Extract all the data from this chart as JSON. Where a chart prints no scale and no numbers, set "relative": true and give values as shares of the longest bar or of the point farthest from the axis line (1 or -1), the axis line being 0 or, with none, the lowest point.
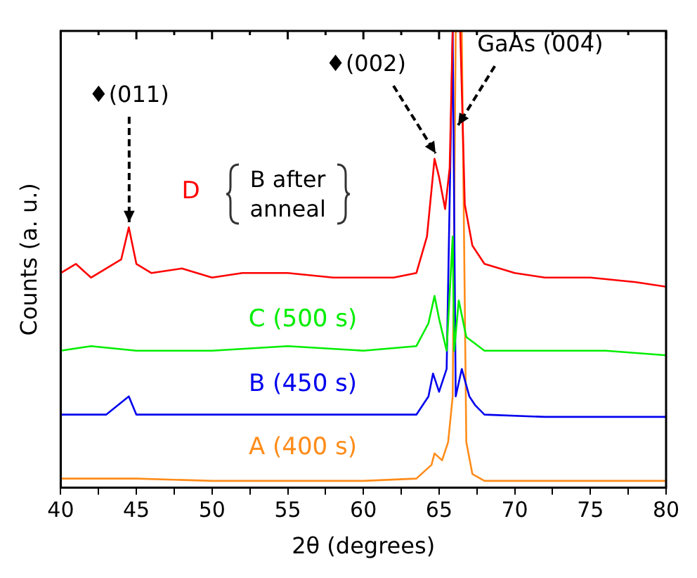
{
  "chart_data": {
    "type": "line",
    "relative": true,
    "xlabel": "2θ (degrees)",
    "ylabel": "Counts (a. u.)",
    "xlim": [
      40,
      80
    ],
    "xticks": [
      40,
      {
        "value": 42.5,
        "label": null
      },
      45,
      {
        "value": 47.5,
        "label": null
      },
      50,
      {
        "value": 52.5,
        "label": null
      },
      55,
      {
        "value": 57.5,
        "label": null
      },
      60,
      {
        "value": 62.5,
        "label": null
      },
      65,
      {
        "value": 67.5,
        "label": null
      },
      70,
      {
        "value": 72.5,
        "label": null
      },
      75,
      {
        "value": 77.5,
        "label": null
      },
      80
    ],
    "grid": false,
    "legend": false,
    "marker": "none",
    "line_style": "solid",
    "series": [
      {
        "name": "D",
        "color": "#ff0000",
        "x": [
          40,
          41,
          42,
          43,
          44,
          44.5,
          45,
          46,
          48,
          50,
          52,
          55,
          58,
          60,
          62,
          63.5,
          64.2,
          64.7,
          65.0,
          65.4,
          65.7,
          65.9,
          66.4,
          66.7,
          67.2,
          68,
          70,
          72,
          75,
          78,
          80
        ],
        "values": [
          0.47,
          0.49,
          0.46,
          0.48,
          0.5,
          0.57,
          0.49,
          0.47,
          0.48,
          0.46,
          0.47,
          0.47,
          0.46,
          0.46,
          0.46,
          0.47,
          0.55,
          0.72,
          0.68,
          0.61,
          0.7,
          1.0,
          1.0,
          0.62,
          0.53,
          0.49,
          0.47,
          0.46,
          0.46,
          0.45,
          0.44
        ]
      },
      {
        "name": "C (500 s)",
        "color": "#00ee00",
        "x": [
          40,
          42,
          45,
          50,
          55,
          60,
          63.5,
          64.3,
          64.7,
          65.0,
          65.5,
          65.9,
          66.0,
          66.3,
          66.8,
          68,
          72,
          76,
          80
        ],
        "values": [
          0.3,
          0.31,
          0.3,
          0.3,
          0.31,
          0.3,
          0.31,
          0.36,
          0.42,
          0.37,
          0.3,
          0.55,
          0.3,
          0.41,
          0.33,
          0.3,
          0.3,
          0.3,
          0.29
        ]
      },
      {
        "name": "B (450 s)",
        "color": "#0000ee",
        "x": [
          40,
          43,
          44.5,
          45,
          50,
          55,
          60,
          63.5,
          64.3,
          64.6,
          65.0,
          65.5,
          65.9,
          66.1,
          66.5,
          67.0,
          67.4,
          68,
          72,
          76,
          80
        ],
        "values": [
          0.16,
          0.16,
          0.2,
          0.16,
          0.16,
          0.16,
          0.16,
          0.16,
          0.2,
          0.25,
          0.21,
          0.26,
          1.0,
          0.2,
          0.26,
          0.2,
          0.18,
          0.16,
          0.155,
          0.155,
          0.155
        ]
      },
      {
        "name": "A (400 s)",
        "color": "#ff8c1a",
        "x": [
          40,
          45,
          50,
          55,
          60,
          63.5,
          64.5,
          64.7,
          65.2,
          65.6,
          65.9,
          66.1,
          66.5,
          66.8,
          67.2,
          68,
          72,
          80
        ],
        "values": [
          0.02,
          0.02,
          0.015,
          0.015,
          0.015,
          0.02,
          0.05,
          0.075,
          0.06,
          0.1,
          0.2,
          1.0,
          1.0,
          0.1,
          0.03,
          0.015,
          0.015,
          0.015
        ]
      }
    ],
    "annotations": [
      {
        "text": "♦(011)",
        "x": 44.5,
        "y": 0.57
      },
      {
        "text": "♦(002)",
        "x": 64.8,
        "y": 0.72
      },
      {
        "text": "GaAs (004)",
        "x": 66.3,
        "y": 0.78
      },
      "B after anneal"
    ]
  }
}
